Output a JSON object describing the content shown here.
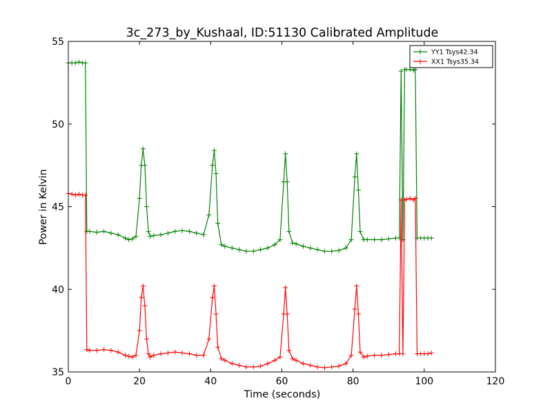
{
  "chart_data": {
    "type": "line",
    "title": "3c_273_by_Kushaal, ID:51130 Calibrated Amplitude",
    "xlabel": "Time (seconds)",
    "ylabel": "Power in Kelvin",
    "xlim": [
      0,
      120
    ],
    "ylim": [
      35,
      55
    ],
    "xticks": [
      0,
      20,
      40,
      60,
      80,
      100,
      120
    ],
    "yticks": [
      35,
      40,
      45,
      50,
      55
    ],
    "grid": false,
    "legend_placement": "top-right",
    "series": [
      {
        "name": "YY1 Tsys42.34",
        "color": "#008000",
        "marker": "+",
        "x": [
          0,
          1,
          2,
          3,
          4,
          4.8,
          5.2,
          6,
          8,
          10,
          12,
          14,
          16,
          17,
          18,
          19,
          20,
          20.5,
          21,
          21.5,
          22,
          22.5,
          23,
          24,
          26,
          28,
          30,
          32,
          34,
          36,
          38,
          39.5,
          40.5,
          41,
          41.5,
          42,
          43,
          44,
          46,
          48,
          50,
          52,
          54,
          56,
          58,
          59.5,
          60.5,
          61,
          61.5,
          62,
          63,
          64,
          66,
          68,
          70,
          72,
          74,
          76,
          78,
          79.5,
          80.5,
          81,
          81.5,
          82,
          83,
          84,
          86,
          88,
          90,
          92,
          93,
          93.5,
          94,
          94.5,
          95,
          96,
          97,
          97.5,
          98,
          99,
          100,
          101,
          102
        ],
        "y": [
          53.7,
          53.7,
          53.7,
          53.75,
          53.7,
          53.7,
          43.5,
          43.5,
          43.45,
          43.5,
          43.4,
          43.3,
          43.1,
          43.0,
          43.05,
          43.2,
          45.5,
          47.5,
          48.5,
          47.5,
          45.0,
          43.5,
          43.2,
          43.25,
          43.3,
          43.4,
          43.5,
          43.55,
          43.5,
          43.4,
          43.3,
          44.5,
          47.5,
          48.4,
          47.0,
          44.0,
          42.7,
          42.6,
          42.5,
          42.4,
          42.3,
          42.3,
          42.4,
          42.5,
          42.7,
          43.0,
          46.5,
          48.2,
          46.5,
          43.5,
          42.8,
          42.75,
          42.6,
          42.5,
          42.4,
          42.3,
          42.3,
          42.35,
          42.5,
          43.0,
          46.8,
          48.2,
          46.0,
          43.5,
          43.0,
          43.0,
          43.0,
          43.0,
          43.05,
          43.1,
          43.1,
          53.2,
          43.0,
          53.3,
          53.3,
          53.3,
          53.25,
          53.3,
          43.1,
          43.1,
          43.1,
          43.1,
          43.1
        ]
      },
      {
        "name": "XX1 Tsys35.34",
        "color": "#ff0000",
        "marker": "+",
        "x": [
          0,
          1,
          2,
          3,
          4,
          4.8,
          5.2,
          6,
          8,
          10,
          12,
          14,
          16,
          17,
          18,
          19,
          20,
          20.5,
          21,
          21.5,
          22,
          22.5,
          23,
          24,
          26,
          28,
          30,
          32,
          34,
          36,
          38,
          39.5,
          40.5,
          41,
          41.5,
          42,
          43,
          44,
          46,
          48,
          50,
          52,
          54,
          56,
          58,
          59.5,
          60.5,
          61,
          61.5,
          62,
          63,
          64,
          66,
          68,
          70,
          72,
          74,
          76,
          78,
          79.5,
          80.5,
          81,
          81.5,
          82,
          83,
          84,
          86,
          88,
          90,
          92,
          93,
          93.5,
          94,
          94.5,
          95,
          96,
          97,
          97.5,
          98,
          99,
          100,
          101,
          102
        ],
        "y": [
          45.8,
          45.75,
          45.7,
          45.75,
          45.7,
          45.7,
          36.35,
          36.3,
          36.3,
          36.35,
          36.3,
          36.2,
          36.0,
          35.95,
          35.9,
          36.0,
          37.5,
          39.5,
          40.2,
          39.0,
          37.0,
          36.1,
          35.9,
          36.0,
          36.1,
          36.15,
          36.2,
          36.15,
          36.1,
          36.0,
          36.0,
          37.0,
          39.5,
          40.2,
          38.5,
          36.5,
          35.8,
          35.7,
          35.5,
          35.4,
          35.3,
          35.3,
          35.35,
          35.5,
          35.7,
          35.9,
          38.5,
          40.1,
          38.5,
          36.3,
          35.8,
          35.7,
          35.5,
          35.4,
          35.3,
          35.25,
          35.3,
          35.35,
          35.5,
          36.0,
          38.8,
          40.2,
          38.5,
          36.2,
          35.9,
          35.95,
          36.0,
          36.0,
          36.05,
          36.1,
          36.1,
          45.4,
          36.1,
          45.4,
          45.45,
          45.5,
          45.4,
          45.5,
          36.1,
          36.1,
          36.1,
          36.1,
          36.15
        ]
      }
    ]
  }
}
